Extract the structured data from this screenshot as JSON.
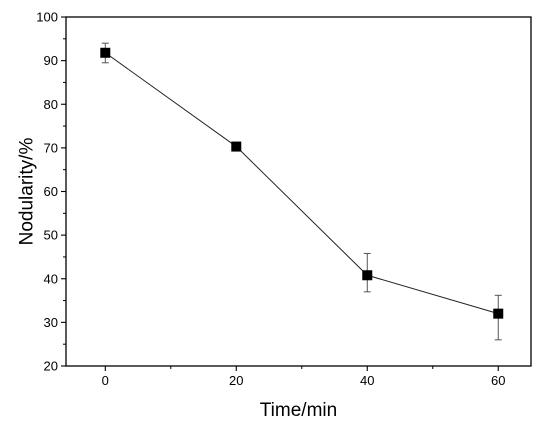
{
  "chart_data": {
    "type": "line",
    "title": "",
    "xlabel": "Time/min",
    "ylabel": "Nodularity/%",
    "xlim": [
      -6,
      65
    ],
    "ylim": [
      20,
      100
    ],
    "xticks": [
      0,
      20,
      40,
      60
    ],
    "yticks": [
      20,
      30,
      40,
      50,
      60,
      70,
      80,
      90,
      100
    ],
    "grid": false,
    "legend": "none",
    "marker": "square",
    "color": "#000000",
    "series": [
      {
        "x": [
          0,
          20,
          40,
          60
        ],
        "y": [
          91.8,
          70.3,
          40.8,
          32.0
        ],
        "err_low": [
          89.5,
          69.5,
          37.0,
          26.0
        ],
        "err_high": [
          94.0,
          71.0,
          45.8,
          36.2
        ]
      }
    ]
  }
}
